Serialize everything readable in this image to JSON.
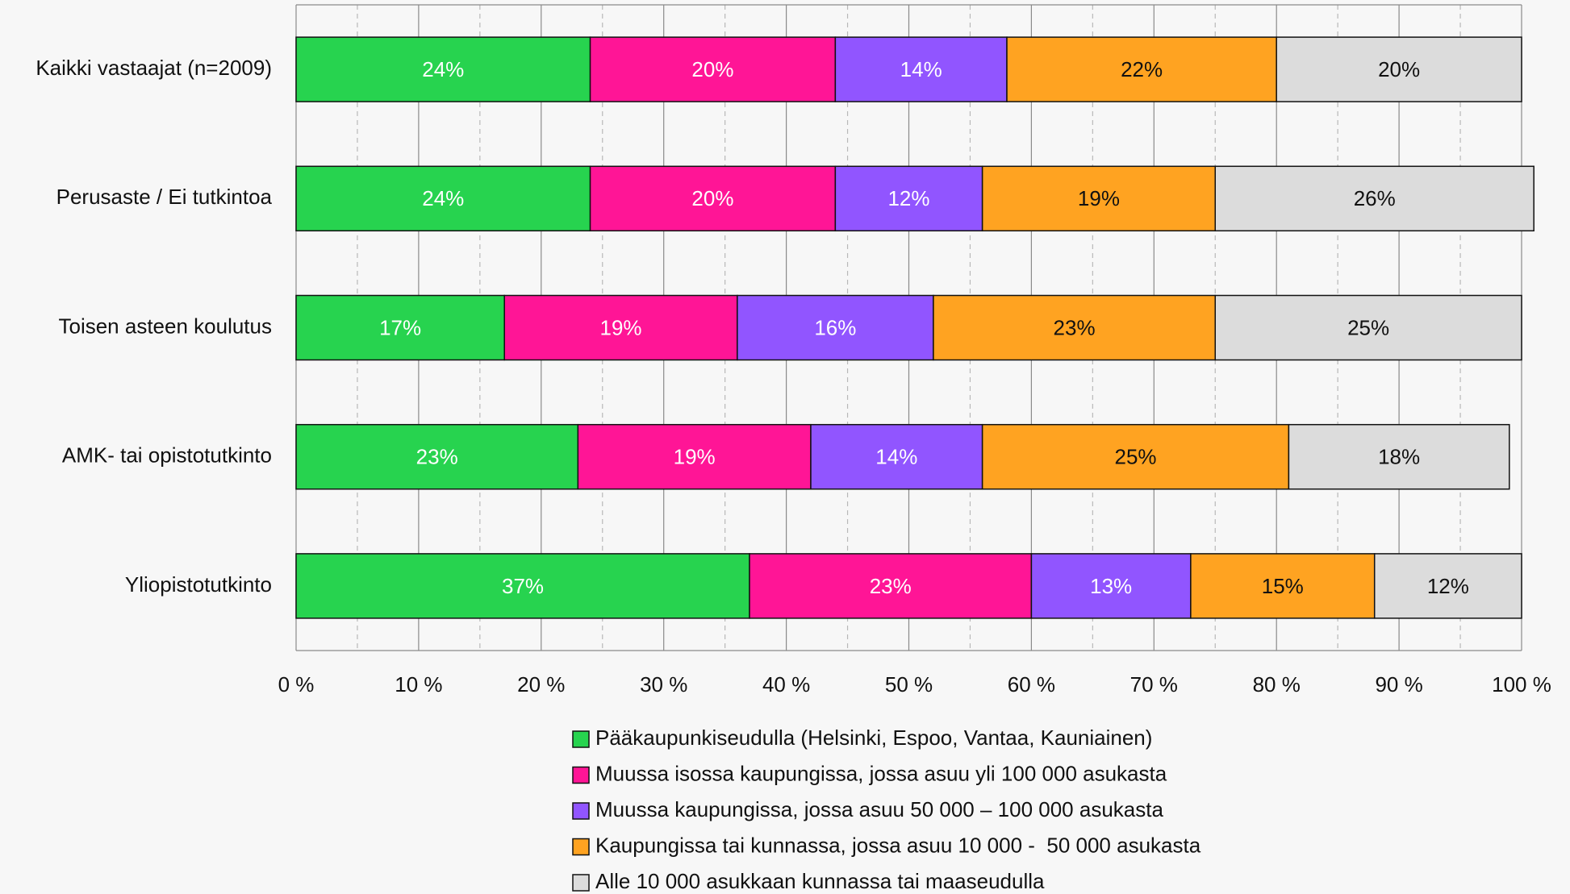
{
  "chart_data": {
    "type": "stacked-bar-horizontal",
    "categories": [
      "Kaikki vastaajat (n=2009)",
      "Perusaste / Ei tutkintoa",
      "Toisen asteen koulutus",
      "AMK- tai opistotutkinto",
      "Yliopistotutkinto"
    ],
    "series": [
      {
        "name": "Pääkaupunkiseudulla (Helsinki, Espoo, Vantaa, Kauniainen)",
        "color": "#27d34f",
        "label_color": "#ffffff",
        "values": [
          24,
          24,
          17,
          23,
          37
        ],
        "value_labels": [
          "24%",
          "24%",
          "17%",
          "23%",
          "37%"
        ]
      },
      {
        "name": "Muussa isossa kaupungissa, jossa asuu yli 100 000 asukasta",
        "color": "#ff1596",
        "label_color": "#ffffff",
        "values": [
          20,
          20,
          19,
          19,
          23
        ],
        "value_labels": [
          "20%",
          "20%",
          "19%",
          "19%",
          "23%"
        ]
      },
      {
        "name": "Muussa kaupungissa, jossa asuu 50 000 – 100 000 asukasta",
        "color": "#9155ff",
        "label_color": "#ffffff",
        "values": [
          14,
          12,
          16,
          14,
          13
        ],
        "value_labels": [
          "14%",
          "12%",
          "16%",
          "14%",
          "13%"
        ]
      },
      {
        "name": "Kaupungissa tai kunnassa, jossa asuu 10 000 -  50 000 asukasta",
        "color": "#ffa321",
        "label_color": "#111111",
        "values": [
          22,
          19,
          23,
          25,
          15
        ],
        "value_labels": [
          "22%",
          "19%",
          "23%",
          "25%",
          "15%"
        ]
      },
      {
        "name": "Alle 10 000 asukkaan kunnassa tai maaseudulla",
        "color": "#dcdcdc",
        "label_color": "#111111",
        "values": [
          20,
          26,
          25,
          18,
          12
        ],
        "value_labels": [
          "20%",
          "26%",
          "25%",
          "18%",
          "12%"
        ]
      }
    ],
    "xlim": [
      0,
      100
    ],
    "xticks": [
      {
        "value": 0,
        "label": "0 %"
      },
      {
        "value": 10,
        "label": "10 %"
      },
      {
        "value": 20,
        "label": "20 %"
      },
      {
        "value": 30,
        "label": "30 %"
      },
      {
        "value": 40,
        "label": "40 %"
      },
      {
        "value": 50,
        "label": "50 %"
      },
      {
        "value": 60,
        "label": "60 %"
      },
      {
        "value": 70,
        "label": "70 %"
      },
      {
        "value": 80,
        "label": "80 %"
      },
      {
        "value": 90,
        "label": "90 %"
      },
      {
        "value": 100,
        "label": "100 %"
      }
    ],
    "xminorticks": [
      5,
      15,
      25,
      35,
      45,
      55,
      65,
      75,
      85,
      95
    ],
    "grid": true,
    "legend": "bottom"
  }
}
